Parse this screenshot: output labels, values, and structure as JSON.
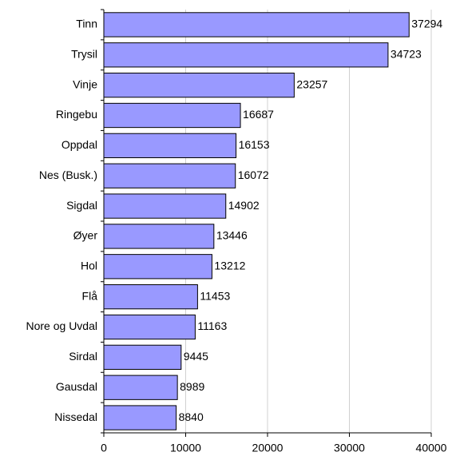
{
  "chart_data": {
    "type": "bar",
    "orientation": "horizontal",
    "categories": [
      "Tinn",
      "Trysil",
      "Vinje",
      "Ringebu",
      "Oppdal",
      "Nes (Busk.)",
      "Sigdal",
      "Øyer",
      "Hol",
      "Flå",
      "Nore og Uvdal",
      "Sirdal",
      "Gausdal",
      "Nissedal"
    ],
    "values": [
      37294,
      34723,
      23257,
      16687,
      16153,
      16072,
      14902,
      13446,
      13212,
      11453,
      11163,
      9445,
      8989,
      8840
    ],
    "color": "#9999ff",
    "xlim": [
      0,
      40000
    ],
    "xticks": [
      0,
      10000,
      20000,
      30000,
      40000
    ],
    "grid": true
  }
}
